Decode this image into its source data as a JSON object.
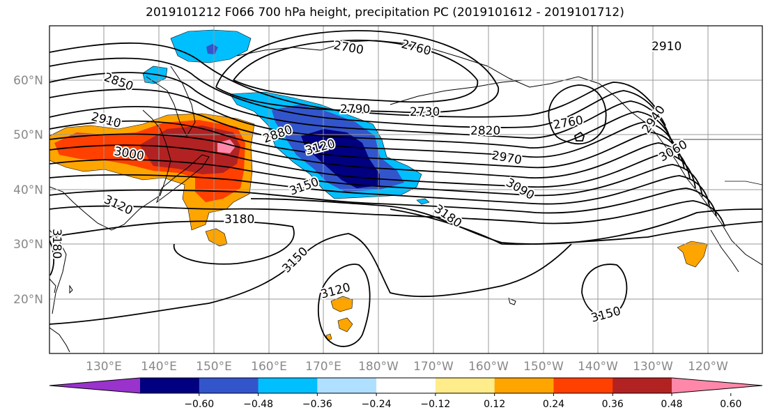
{
  "title": "2019101212 F066 700 hPa height, precipitation PC (2019101612 - 2019101712)",
  "lon_labels": [
    "130°E",
    "140°E",
    "150°E",
    "160°E",
    "170°E",
    "180°W",
    "170°W",
    "160°W",
    "150°W",
    "140°W",
    "130°W",
    "120°W"
  ],
  "lat_labels": [
    "60°N",
    "50°N",
    "40°N",
    "30°N",
    "20°N"
  ],
  "colorbar": {
    "ticks": [
      "−0.60",
      "−0.48",
      "−0.36",
      "−0.24",
      "−0.12",
      "0.12",
      "0.24",
      "0.36",
      "0.48",
      "0.60"
    ],
    "colors": [
      "#9933cc",
      "#000080",
      "#3355cc",
      "#00bfff",
      "#b0e0ff",
      "#ffffff",
      "#ffec8b",
      "#ffa500",
      "#ff4000",
      "#b22222",
      "#ff88aa"
    ]
  },
  "contour_labels": {
    "c2700": "2700",
    "c2760a": "2760",
    "c2910a": "2910",
    "c2850": "2850",
    "c2910b": "2910",
    "c3000": "3000",
    "c2790": "2790",
    "c2730": "2730",
    "c2880": "2880",
    "c3120a": "3120",
    "c2820": "2820",
    "c2760b": "2760",
    "c2970": "2970",
    "c2940": "2940",
    "c3060": "3060",
    "c3150a": "3150",
    "c3090": "3090",
    "c3120b": "3120",
    "c3180a": "3180",
    "c3180b": "3180",
    "c3180c": "3180",
    "c3150b": "3150",
    "c3120c": "3120",
    "c3150c": "3150"
  }
}
